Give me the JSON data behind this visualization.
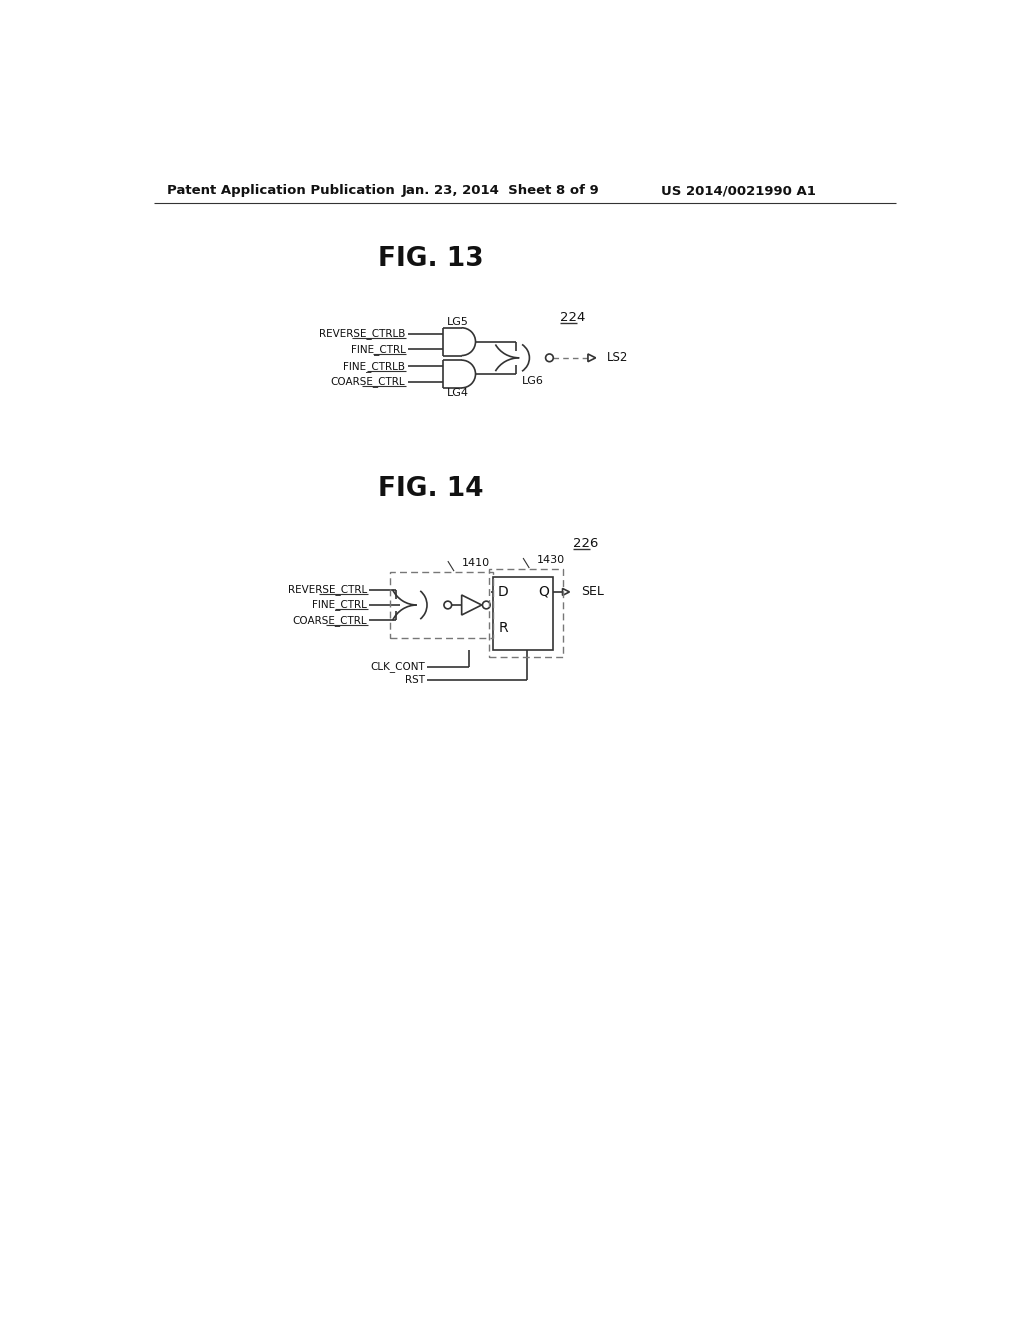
{
  "bg_color": "#ffffff",
  "header_left": "Patent Application Publication",
  "header_mid": "Jan. 23, 2014  Sheet 8 of 9",
  "header_right": "US 2014/0021990 A1",
  "fig13_title": "FIG. 13",
  "fig14_title": "FIG. 14",
  "label_224": "224",
  "label_226": "226",
  "label_1410": "1410",
  "label_1430": "1430",
  "line_color": "#333333",
  "text_color": "#111111",
  "dashed_color": "#777777"
}
